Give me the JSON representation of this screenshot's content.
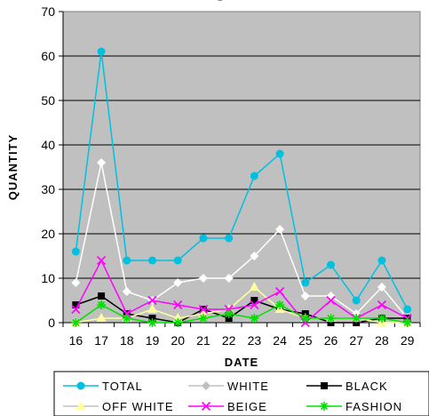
{
  "chart_data": {
    "type": "line",
    "title": "g",
    "xlabel": "DATE",
    "ylabel": "QUANTITY",
    "x": [
      "16",
      "17",
      "18",
      "19",
      "20",
      "21",
      "22",
      "23",
      "24",
      "25",
      "26",
      "27",
      "28",
      "29"
    ],
    "ylim": [
      0,
      70
    ],
    "yticks": [
      "0",
      "10",
      "20",
      "30",
      "40",
      "50",
      "60",
      "70"
    ],
    "grid": true,
    "legend_position": "bottom",
    "series": [
      {
        "name": "TOTAL",
        "color": "#00c0e0",
        "marker": "circle",
        "values": [
          16,
          61,
          14,
          14,
          14,
          19,
          19,
          33,
          38,
          9,
          13,
          5,
          14,
          3
        ]
      },
      {
        "name": "WHITE",
        "color": "#ffffff",
        "marker": "diamond",
        "values": [
          9,
          36,
          7,
          5,
          9,
          10,
          10,
          15,
          21,
          6,
          6,
          2,
          8,
          1
        ]
      },
      {
        "name": "BLACK",
        "color": "#000000",
        "marker": "square",
        "values": [
          4,
          6,
          2,
          1,
          0,
          3,
          1,
          5,
          3,
          2,
          0,
          0,
          1,
          1
        ]
      },
      {
        "name": "OFF WHITE",
        "color": "#ffffa0",
        "marker": "triangle",
        "values": [
          0,
          1,
          1,
          3,
          1,
          2,
          3,
          8,
          3,
          1,
          1,
          1,
          0,
          0
        ]
      },
      {
        "name": "BEIGE",
        "color": "#ff00ff",
        "marker": "x",
        "values": [
          3,
          14,
          2,
          5,
          4,
          3,
          3,
          4,
          7,
          0,
          5,
          1,
          4,
          1
        ]
      },
      {
        "name": "FASHION",
        "color": "#00e000",
        "marker": "asterisk",
        "values": [
          0,
          4,
          1,
          0,
          0,
          1,
          2,
          1,
          4,
          1,
          1,
          1,
          1,
          0
        ]
      }
    ]
  }
}
